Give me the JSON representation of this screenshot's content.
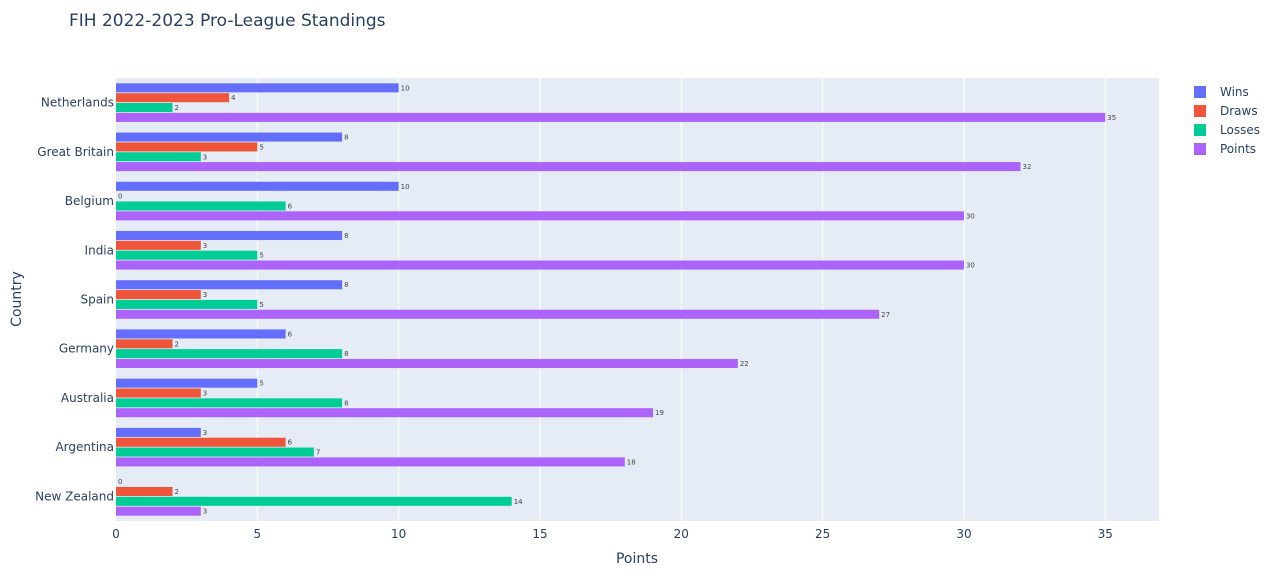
{
  "chart_data": {
    "type": "bar",
    "orientation": "horizontal",
    "title": "FIH 2022-2023 Pro-League Standings",
    "xlabel": "Points",
    "ylabel": "Country",
    "categories": [
      "Netherlands",
      "Great Britain",
      "Belgium",
      "India",
      "Spain",
      "Germany",
      "Australia",
      "Argentina",
      "New Zealand"
    ],
    "series": [
      {
        "name": "Wins",
        "color": "#636efa",
        "values": [
          10,
          8,
          10,
          8,
          8,
          6,
          5,
          3,
          0
        ]
      },
      {
        "name": "Draws",
        "color": "#ef553b",
        "values": [
          4,
          5,
          0,
          3,
          3,
          2,
          3,
          6,
          2
        ]
      },
      {
        "name": "Losses",
        "color": "#00cc96",
        "values": [
          2,
          3,
          6,
          5,
          5,
          8,
          8,
          7,
          14
        ]
      },
      {
        "name": "Points",
        "color": "#ab63fa",
        "values": [
          35,
          32,
          30,
          30,
          27,
          22,
          19,
          18,
          3
        ]
      }
    ],
    "xlim": [
      0,
      36.9
    ],
    "xticks": [
      0,
      5,
      10,
      15,
      20,
      25,
      30,
      35
    ],
    "grid": true,
    "legend_position": "top-right",
    "plot_bgcolor": "#e5ecf6"
  }
}
